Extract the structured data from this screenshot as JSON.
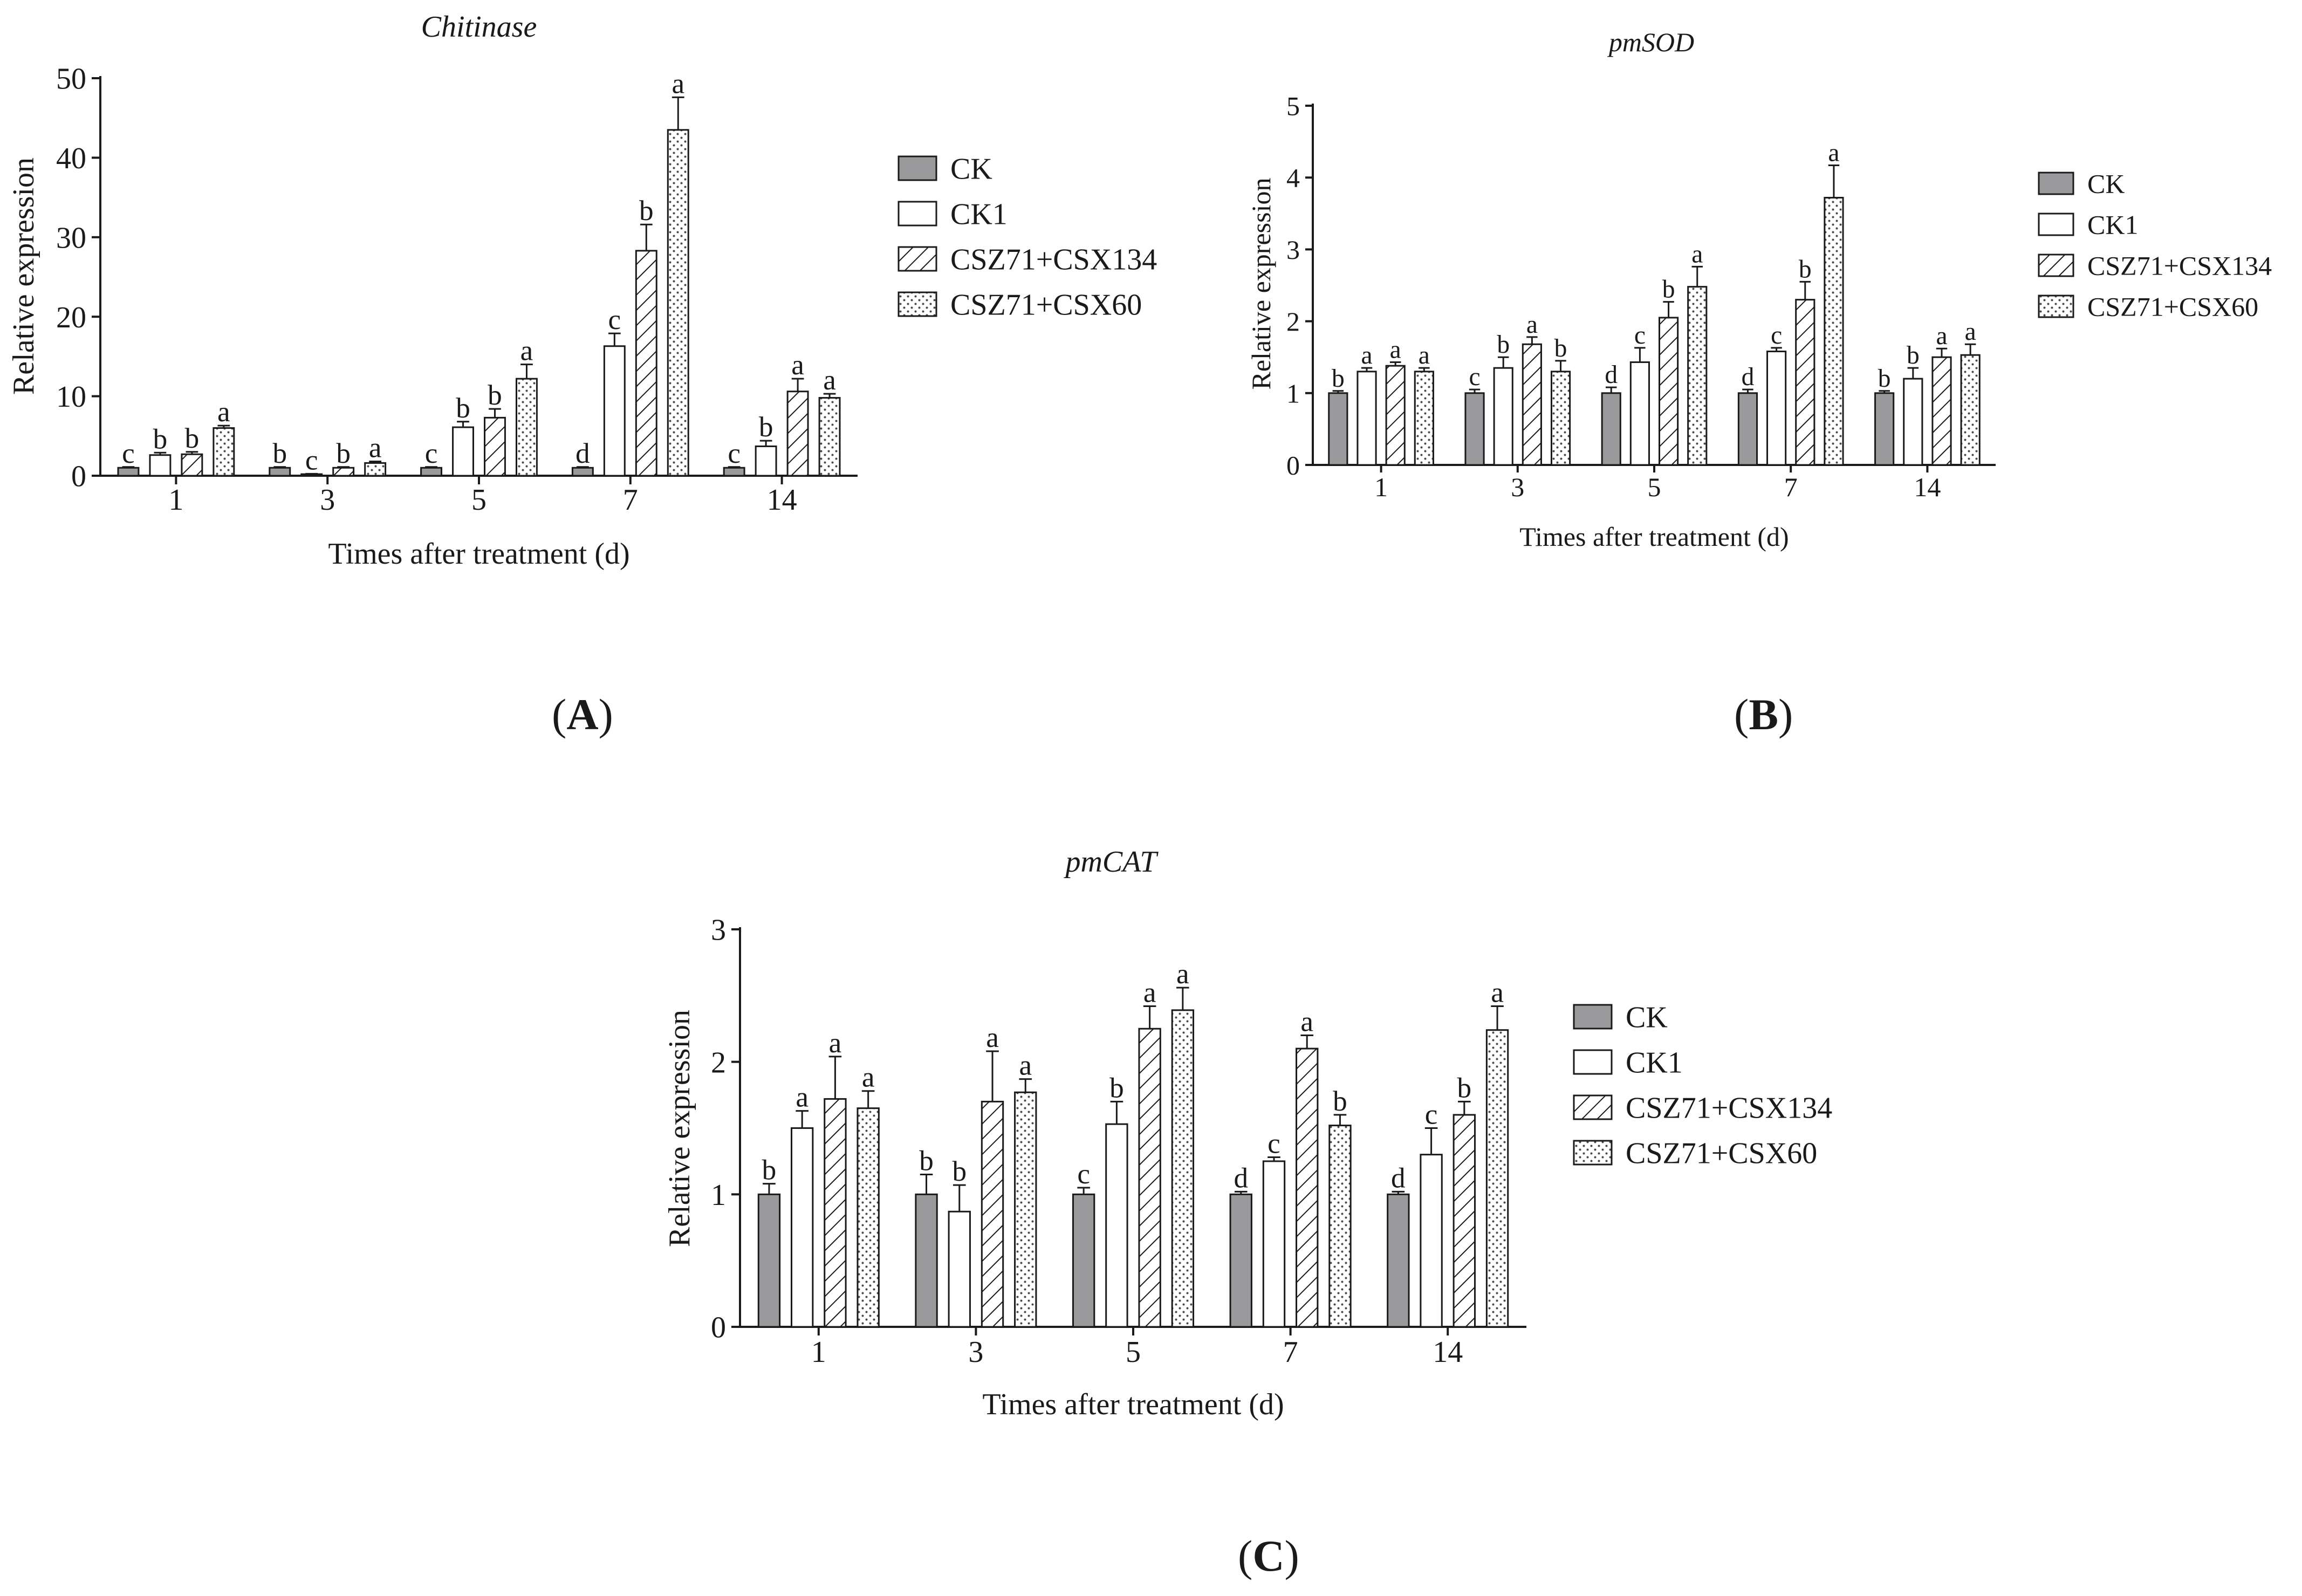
{
  "figure": {
    "legend": [
      "CK",
      "CK1",
      "CSZ71+CSX134",
      "CSZ71+CSX60"
    ],
    "xlabel": "Times after treatment (d)",
    "ylabel": "Relative expression"
  },
  "panels": [
    {
      "label_open": "(",
      "label_letter": "A",
      "label_close": ")"
    },
    {
      "label_open": "(",
      "label_letter": "B",
      "label_close": ")"
    },
    {
      "label_open": "(",
      "label_letter": "C",
      "label_close": ")"
    }
  ],
  "chart_data": [
    {
      "type": "bar",
      "title": "Chitinase",
      "xlabel": "Times after treatment (d)",
      "ylabel": "Relative expression",
      "categories": [
        "1",
        "3",
        "5",
        "7",
        "14"
      ],
      "ylim": [
        0,
        50
      ],
      "yticks": [
        0,
        10,
        20,
        30,
        40,
        50
      ],
      "legend": [
        "CK",
        "CK1",
        "CSZ71+CSX134",
        "CSZ71+CSX60"
      ],
      "series": [
        {
          "name": "CK",
          "values": [
            1,
            1,
            1,
            1,
            1
          ],
          "errors": [
            0.1,
            0.1,
            0.1,
            0.1,
            0.1
          ],
          "letters": [
            "c",
            "b",
            "c",
            "d",
            "c"
          ]
        },
        {
          "name": "CK1",
          "values": [
            2.6,
            0.2,
            6.1,
            16.3,
            3.7
          ],
          "errors": [
            0.3,
            0.05,
            0.7,
            1.6,
            0.7
          ],
          "letters": [
            "b",
            "c",
            "b",
            "c",
            "b"
          ]
        },
        {
          "name": "CSZ71+CSX134",
          "values": [
            2.7,
            1.0,
            7.3,
            28.3,
            10.6
          ],
          "errors": [
            0.3,
            0.1,
            1.1,
            3.3,
            1.6
          ],
          "letters": [
            "b",
            "b",
            "b",
            "b",
            "a"
          ]
        },
        {
          "name": "CSZ71+CSX60",
          "values": [
            6.0,
            1.6,
            12.2,
            43.5,
            9.8
          ],
          "errors": [
            0.3,
            0.2,
            1.8,
            4.1,
            0.5
          ],
          "letters": [
            "a",
            "a",
            "a",
            "a",
            "a"
          ]
        }
      ]
    },
    {
      "type": "bar",
      "title": "pmSOD",
      "xlabel": "Times after treatment (d)",
      "ylabel": "Relative expression",
      "categories": [
        "1",
        "3",
        "5",
        "7",
        "14"
      ],
      "ylim": [
        0,
        5
      ],
      "yticks": [
        0,
        1,
        2,
        3,
        4,
        5
      ],
      "legend": [
        "CK",
        "CK1",
        "CSZ71+CSX134",
        "CSZ71+CSX60"
      ],
      "series": [
        {
          "name": "CK",
          "values": [
            1,
            1,
            1,
            1,
            1
          ],
          "errors": [
            0.03,
            0.05,
            0.08,
            0.05,
            0.03
          ],
          "letters": [
            "b",
            "c",
            "d",
            "d",
            "b"
          ]
        },
        {
          "name": "CK1",
          "values": [
            1.3,
            1.35,
            1.43,
            1.58,
            1.2
          ],
          "errors": [
            0.05,
            0.15,
            0.2,
            0.05,
            0.15
          ],
          "letters": [
            "a",
            "b",
            "c",
            "c",
            "b"
          ]
        },
        {
          "name": "CSZ71+CSX134",
          "values": [
            1.38,
            1.68,
            2.05,
            2.3,
            1.5
          ],
          "errors": [
            0.05,
            0.1,
            0.22,
            0.25,
            0.12
          ],
          "letters": [
            "a",
            "a",
            "b",
            "b",
            "a"
          ]
        },
        {
          "name": "CSZ71+CSX60",
          "values": [
            1.3,
            1.3,
            2.48,
            3.72,
            1.53
          ],
          "errors": [
            0.05,
            0.15,
            0.28,
            0.45,
            0.15
          ],
          "letters": [
            "a",
            "b",
            "a",
            "a",
            "a"
          ]
        }
      ]
    },
    {
      "type": "bar",
      "title": "pmCAT",
      "xlabel": "Times after treatment (d)",
      "ylabel": "Relative expression",
      "categories": [
        "1",
        "3",
        "5",
        "7",
        "14"
      ],
      "ylim": [
        0,
        3
      ],
      "yticks": [
        0,
        1,
        2,
        3
      ],
      "legend": [
        "CK",
        "CK1",
        "CSZ71+CSX134",
        "CSZ71+CSX60"
      ],
      "series": [
        {
          "name": "CK",
          "values": [
            1.0,
            1.0,
            1.0,
            1.0,
            1.0
          ],
          "errors": [
            0.08,
            0.15,
            0.05,
            0.02,
            0.02
          ],
          "letters": [
            "b",
            "b",
            "c",
            "d",
            "d"
          ]
        },
        {
          "name": "CK1",
          "values": [
            1.5,
            0.87,
            1.53,
            1.25,
            1.3
          ],
          "errors": [
            0.13,
            0.2,
            0.17,
            0.03,
            0.2
          ],
          "letters": [
            "a",
            "b",
            "b",
            "c",
            "c"
          ]
        },
        {
          "name": "CSZ71+CSX134",
          "values": [
            1.72,
            1.7,
            2.25,
            2.1,
            1.6
          ],
          "errors": [
            0.32,
            0.38,
            0.17,
            0.1,
            0.1
          ],
          "letters": [
            "a",
            "a",
            "a",
            "a",
            "b"
          ]
        },
        {
          "name": "CSZ71+CSX60",
          "values": [
            1.65,
            1.77,
            2.39,
            1.52,
            2.24
          ],
          "errors": [
            0.13,
            0.1,
            0.17,
            0.08,
            0.18
          ],
          "letters": [
            "a",
            "a",
            "a",
            "b",
            "a"
          ]
        }
      ]
    }
  ]
}
